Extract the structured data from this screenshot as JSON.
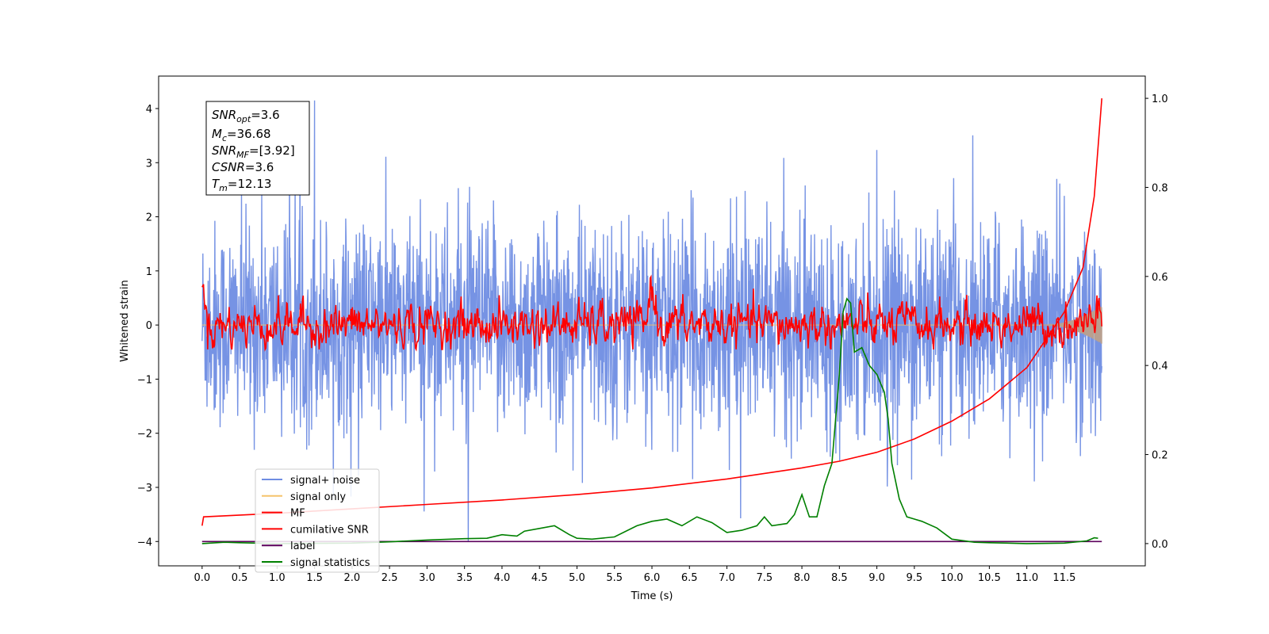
{
  "chart_data": {
    "type": "line",
    "xlabel": "Time (s)",
    "ylabel": "Whitened strain",
    "xlim": [
      -0.58,
      12.58
    ],
    "ylim": [
      -4.45,
      4.6
    ],
    "y2lim": [
      -0.05,
      1.05
    ],
    "x_ticks": [
      "0.0",
      "0.5",
      "1.0",
      "1.5",
      "2.0",
      "2.5",
      "3.0",
      "3.5",
      "4.0",
      "4.5",
      "5.0",
      "5.5",
      "6.0",
      "6.5",
      "7.0",
      "7.5",
      "8.0",
      "8.5",
      "9.0",
      "9.5",
      "10.0",
      "10.5",
      "11.0",
      "11.5"
    ],
    "y_ticks": [
      "−4",
      "−3",
      "−2",
      "−1",
      "0",
      "1",
      "2",
      "3",
      "4"
    ],
    "y2_ticks": [
      "0.0",
      "0.2",
      "0.4",
      "0.6",
      "0.8",
      "1.0"
    ],
    "info_box": {
      "snr_opt": {
        "main": "SNR",
        "sub": "opt",
        "value": "=3.6"
      },
      "mc": {
        "main": "M",
        "sub": "c",
        "value": "=36.68"
      },
      "snr_mf": {
        "main": "SNR",
        "sub": "MF",
        "value": "=[3.92]"
      },
      "csnr": {
        "main": "CSNR",
        "sub": "",
        "value": "=3.6"
      },
      "tm": {
        "main": "T",
        "sub": "m",
        "value": "=12.13"
      }
    },
    "legend": [
      {
        "name": "signal+ noise",
        "color": "#6f8de3"
      },
      {
        "name": "signal only",
        "color": "#f5c36b"
      },
      {
        "name": "MF",
        "color": "#ff0000"
      },
      {
        "name": "cumilative SNR",
        "color": "#ff0000"
      },
      {
        "name": "label",
        "color": "#5c005c"
      },
      {
        "name": "signal statistics",
        "color": "#008000"
      }
    ],
    "series": [
      {
        "name": "signal+ noise",
        "axis": "left",
        "color": "#6f8de3",
        "description_samples": 0,
        "x_range": [
          0,
          12
        ],
        "amplitude_std": 0.95,
        "max_peak": {
          "x": 1.5,
          "y": 4.15
        },
        "min_peak": {
          "x": 3.55,
          "y": -4.0
        }
      },
      {
        "name": "signal only",
        "axis": "left",
        "color": "#f5c36b",
        "x_range": [
          0,
          12
        ],
        "values_note": "",
        "end_amplitude": 0.35
      },
      {
        "name": "MF",
        "axis": "left",
        "color": "#ff0000",
        "x_range": [
          0,
          12
        ],
        "baseline": 0.0,
        "peaks": [
          {
            "x": 0.0,
            "y": 0.9
          },
          {
            "x": 6.0,
            "y": 1.0
          },
          {
            "x": 11.95,
            "y": 0.9
          }
        ]
      },
      {
        "name": "cumilative SNR",
        "axis": "right",
        "color": "#ff0000",
        "x": [
          0,
          0.02,
          1,
          2,
          3,
          4,
          5,
          6,
          7,
          8,
          8.5,
          9,
          9.5,
          10,
          10.5,
          11,
          11.5,
          11.75,
          11.9,
          12
        ],
        "y": [
          0.04,
          0.06,
          0.068,
          0.078,
          0.088,
          0.098,
          0.11,
          0.125,
          0.145,
          0.17,
          0.185,
          0.205,
          0.235,
          0.275,
          0.325,
          0.395,
          0.52,
          0.62,
          0.78,
          1.0
        ]
      },
      {
        "name": "label",
        "axis": "left",
        "color": "#5c005c",
        "x": [
          0,
          12
        ],
        "y": [
          -4.0,
          -4.0
        ]
      },
      {
        "name": "signal statistics",
        "axis": "right",
        "color": "#008000",
        "x": [
          0,
          0.3,
          0.5,
          1.0,
          2.0,
          2.5,
          3.0,
          3.5,
          3.8,
          4.0,
          4.2,
          4.3,
          4.5,
          4.7,
          4.9,
          5.0,
          5.2,
          5.5,
          5.8,
          6.0,
          6.2,
          6.4,
          6.6,
          6.8,
          7.0,
          7.2,
          7.4,
          7.5,
          7.6,
          7.8,
          7.9,
          8.0,
          8.1,
          8.2,
          8.3,
          8.4,
          8.5,
          8.55,
          8.6,
          8.65,
          8.7,
          8.8,
          8.9,
          9.0,
          9.1,
          9.15,
          9.2,
          9.3,
          9.4,
          9.5,
          9.6,
          9.8,
          10.0,
          10.3,
          10.5,
          11.0,
          11.5,
          11.8,
          11.9,
          11.95
        ],
        "y": [
          0.0,
          0.003,
          0.002,
          0.0,
          0.001,
          0.004,
          0.008,
          0.011,
          0.012,
          0.02,
          0.017,
          0.028,
          0.034,
          0.04,
          0.02,
          0.012,
          0.01,
          0.015,
          0.04,
          0.05,
          0.055,
          0.04,
          0.06,
          0.047,
          0.025,
          0.03,
          0.04,
          0.06,
          0.04,
          0.045,
          0.065,
          0.11,
          0.06,
          0.06,
          0.13,
          0.18,
          0.38,
          0.52,
          0.55,
          0.54,
          0.43,
          0.44,
          0.4,
          0.38,
          0.34,
          0.28,
          0.18,
          0.1,
          0.06,
          0.055,
          0.05,
          0.035,
          0.01,
          0.003,
          0.002,
          0.0,
          0.001,
          0.006,
          0.013,
          0.012
        ]
      }
    ]
  }
}
